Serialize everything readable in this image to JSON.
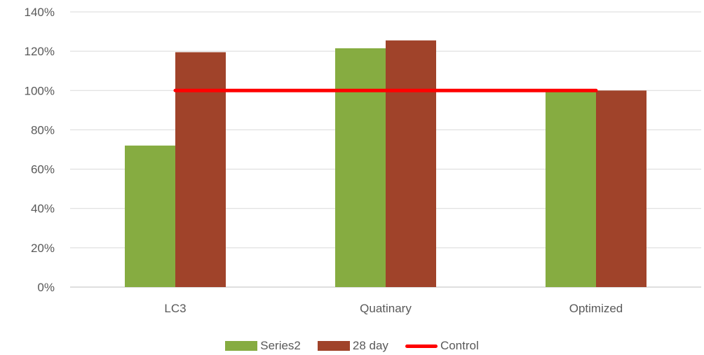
{
  "chart_data": {
    "type": "bar",
    "categories": [
      "LC3",
      "Quatinary",
      "Optimized"
    ],
    "series": [
      {
        "name": "Series2",
        "values": [
          72,
          121.5,
          100
        ],
        "color": "#86ac41"
      },
      {
        "name": "28 day",
        "values": [
          119.5,
          125.5,
          100
        ],
        "color": "#a0432a"
      }
    ],
    "line_series": {
      "name": "Control",
      "values": [
        100,
        100,
        100
      ],
      "color": "#ff0000"
    },
    "ylim": [
      0,
      140
    ],
    "yticks": [
      "0%",
      "20%",
      "40%",
      "60%",
      "80%",
      "100%",
      "120%",
      "140%"
    ],
    "ytick_values": [
      0,
      20,
      40,
      60,
      80,
      100,
      120,
      140
    ],
    "grid": true,
    "legend": "bottom",
    "title": "",
    "xlabel": "",
    "ylabel": ""
  }
}
